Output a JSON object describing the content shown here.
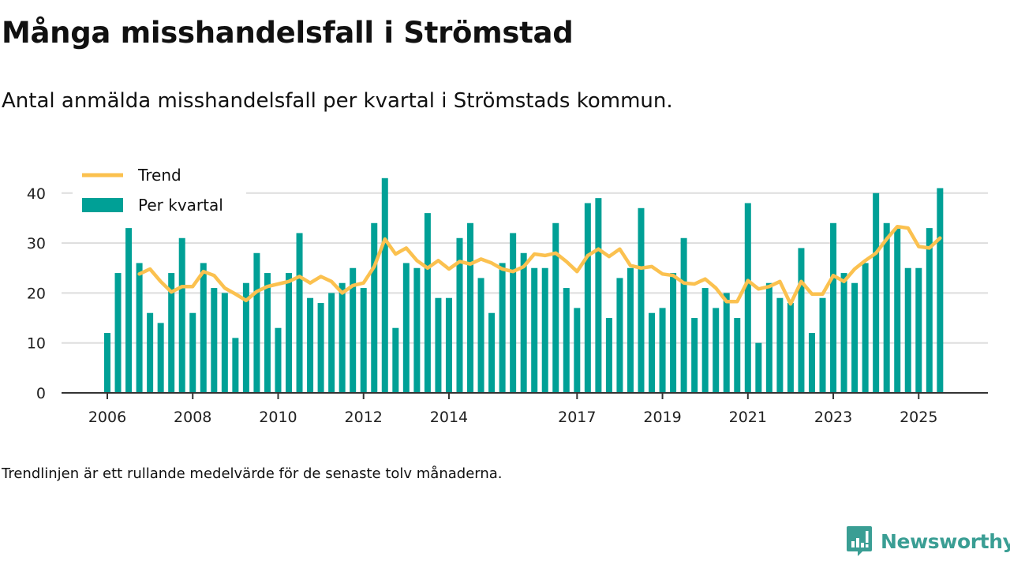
{
  "header": {
    "title": "Många misshandelsfall i Strömstad",
    "subtitle": "Antal anmälda misshandelsfall per kvartal i Strömstads kommun."
  },
  "footer": {
    "note": "Trendlinjen är ett rullande medelvärde för de senaste tolv månaderna.",
    "brand": "Newsworthy"
  },
  "colors": {
    "bar": "#00a096",
    "trend": "#fbc14f",
    "grid": "#dddddd",
    "axis": "#333333",
    "brand": "#3a9e94"
  },
  "chart_data": {
    "type": "bar",
    "title": "Många misshandelsfall i Strömstad",
    "subtitle": "Antal anmälda misshandelsfall per kvartal i Strömstads kommun.",
    "xlabel": "",
    "ylabel": "",
    "ylim": [
      0,
      45
    ],
    "yticks": [
      0,
      10,
      20,
      30,
      40
    ],
    "grid": true,
    "legend_position": "top-left",
    "xtick_labels": [
      {
        "label": "2006",
        "index": 0
      },
      {
        "label": "2008",
        "index": 8
      },
      {
        "label": "2010",
        "index": 16
      },
      {
        "label": "2012",
        "index": 24
      },
      {
        "label": "2014",
        "index": 32
      },
      {
        "label": "2017",
        "index": 44
      },
      {
        "label": "2019",
        "index": 52
      },
      {
        "label": "2021",
        "index": 60
      },
      {
        "label": "2023",
        "index": 68
      },
      {
        "label": "2025",
        "index": 76
      }
    ],
    "categories": [
      "2006 Q1",
      "2006 Q2",
      "2006 Q3",
      "2006 Q4",
      "2007 Q1",
      "2007 Q2",
      "2007 Q3",
      "2007 Q4",
      "2008 Q1",
      "2008 Q2",
      "2008 Q3",
      "2008 Q4",
      "2009 Q1",
      "2009 Q2",
      "2009 Q3",
      "2009 Q4",
      "2010 Q1",
      "2010 Q2",
      "2010 Q3",
      "2010 Q4",
      "2011 Q1",
      "2011 Q2",
      "2011 Q3",
      "2011 Q4",
      "2012 Q1",
      "2012 Q2",
      "2012 Q3",
      "2012 Q4",
      "2013 Q1",
      "2013 Q2",
      "2013 Q3",
      "2013 Q4",
      "2014 Q1",
      "2014 Q2",
      "2014 Q3",
      "2014 Q4",
      "2015 Q1",
      "2015 Q2",
      "2015 Q3",
      "2015 Q4",
      "2016 Q1",
      "2016 Q2",
      "2016 Q3",
      "2016 Q4",
      "2017 Q1",
      "2017 Q2",
      "2017 Q3",
      "2017 Q4",
      "2018 Q1",
      "2018 Q2",
      "2018 Q3",
      "2018 Q4",
      "2019 Q1",
      "2019 Q2",
      "2019 Q3",
      "2019 Q4",
      "2020 Q1",
      "2020 Q2",
      "2020 Q3",
      "2020 Q4",
      "2021 Q1",
      "2021 Q2",
      "2021 Q3",
      "2021 Q4",
      "2022 Q1",
      "2022 Q2",
      "2022 Q3",
      "2022 Q4",
      "2023 Q1",
      "2023 Q2",
      "2023 Q3",
      "2023 Q4",
      "2024 Q1",
      "2024 Q2",
      "2024 Q3",
      "2024 Q4",
      "2025 Q1",
      "2025 Q2",
      "2025 Q3"
    ],
    "series": [
      {
        "name": "Per kvartal",
        "type": "bar",
        "values": [
          12,
          24,
          33,
          26,
          16,
          14,
          24,
          31,
          16,
          26,
          21,
          20,
          11,
          22,
          28,
          24,
          13,
          24,
          32,
          19,
          18,
          20,
          22,
          25,
          21,
          34,
          43,
          13,
          26,
          25,
          36,
          19,
          19,
          31,
          34,
          23,
          16,
          26,
          32,
          28,
          25,
          25,
          34,
          21,
          17,
          38,
          39,
          15,
          23,
          25,
          37,
          16,
          17,
          24,
          31,
          15,
          21,
          17,
          20,
          15,
          38,
          10,
          22,
          19,
          18,
          29,
          12,
          19,
          34,
          24,
          22,
          26,
          40,
          34,
          33,
          25,
          25,
          33,
          41
        ]
      },
      {
        "name": "Trend",
        "type": "line",
        "values": [
          null,
          null,
          null,
          23.8,
          24.8,
          22.3,
          20.2,
          21.3,
          21.3,
          24.3,
          23.5,
          21.0,
          19.8,
          18.5,
          20.3,
          21.3,
          21.8,
          22.3,
          23.3,
          22.0,
          23.3,
          22.3,
          20.0,
          21.5,
          22.0,
          25.3,
          30.8,
          27.8,
          29.0,
          26.5,
          25.0,
          26.5,
          24.8,
          26.3,
          25.8,
          26.8,
          26.0,
          24.8,
          24.3,
          25.3,
          27.8,
          27.5,
          28.0,
          26.3,
          24.3,
          27.5,
          28.8,
          27.3,
          28.8,
          25.5,
          25.0,
          25.3,
          23.8,
          23.5,
          22.0,
          21.8,
          22.8,
          21.0,
          18.3,
          18.3,
          22.5,
          20.8,
          21.3,
          22.3,
          17.8,
          22.3,
          19.8,
          19.8,
          23.5,
          22.3,
          24.8,
          26.5,
          28.0,
          30.8,
          33.3,
          33.0,
          29.3,
          29.0,
          31.0
        ]
      }
    ],
    "legend": [
      {
        "label": "Trend",
        "kind": "line"
      },
      {
        "label": "Per kvartal",
        "kind": "bar"
      }
    ]
  }
}
